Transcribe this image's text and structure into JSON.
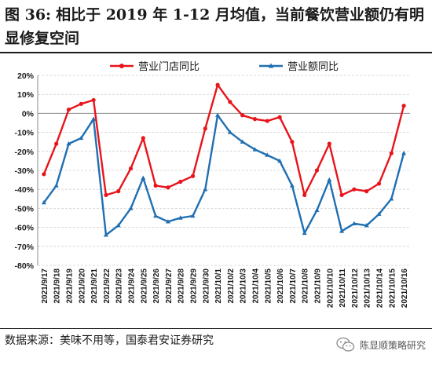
{
  "header": {
    "figure_label": "图 36:",
    "title": "相比于 2019 年 1-12 月均值，当前餐饮营业额仍有明显修复空间"
  },
  "footer": {
    "source": "数据来源：美味不用等，国泰君安证券研究",
    "watermark": "陈显顺策略研究"
  },
  "chart_data": {
    "type": "line",
    "categories": [
      "2021/9/17",
      "2021/9/18",
      "2021/9/19",
      "2021/9/20",
      "2021/9/21",
      "2021/9/22",
      "2021/9/23",
      "2021/9/24",
      "2021/9/25",
      "2021/9/26",
      "2021/9/27",
      "2021/9/28",
      "2021/9/29",
      "2021/9/30",
      "2021/10/1",
      "2021/10/2",
      "2021/10/3",
      "2021/10/4",
      "2021/10/5",
      "2021/10/6",
      "2021/10/7",
      "2021/10/8",
      "2021/10/9",
      "2021/10/10",
      "2021/10/11",
      "2021/10/12",
      "2021/10/13",
      "2021/10/14",
      "2021/10/15",
      "2021/10/16"
    ],
    "x_tick_labels": [
      "2021/9/17",
      "2021/9/18",
      "2021/9/19",
      "2021/9/20",
      "2021/9/21",
      "2021/9/22",
      "2021/9/23",
      "2021/9/24",
      "2021/9/25",
      "2021/9/26",
      "2021/9/27",
      "2021/9/28",
      "2021/9/29",
      "2021/9/30",
      "2021/10/1",
      "2021/10/2",
      "2021/10/3",
      "2021/10/4",
      "2021/10/5",
      "2021/10/6",
      "2021/10/7",
      "2021/10/8",
      "2021/10/9",
      "2021/10/10",
      "2021/10/11",
      "2021/10/12",
      "2021/10/13",
      "2021/10/14",
      "2021/10/15",
      "2021/10/16"
    ],
    "series": [
      {
        "name": "营业门店同比",
        "color": "#e8141b",
        "marker": "circle",
        "values": [
          -32,
          -16,
          2,
          5,
          7,
          -43,
          -41,
          -29,
          -13,
          -38,
          -39,
          -36,
          -33,
          -8,
          15,
          6,
          -1,
          -3,
          -4,
          -2,
          -15,
          -43,
          -30,
          -16,
          -43,
          -40,
          -41,
          -37,
          -21,
          4
        ]
      },
      {
        "name": "营业额同比",
        "color": "#1f6fb2",
        "marker": "triangle",
        "values": [
          -47,
          -38,
          -16,
          -13,
          -3,
          -64,
          -59,
          -50,
          -34,
          -54,
          -57,
          -55,
          -54,
          -40,
          -1,
          -10,
          -15,
          -19,
          -22,
          -25,
          -38,
          -63,
          -51,
          -35,
          -62,
          -58,
          -59,
          -53,
          -45,
          -21
        ]
      }
    ],
    "y_tick_labels": [
      "20%",
      "10%",
      "0%",
      "-10%",
      "-20%",
      "-30%",
      "-40%",
      "-50%",
      "-60%",
      "-70%",
      "-80%"
    ],
    "ylim": [
      -80,
      20
    ],
    "y_unit": "%",
    "grid": true,
    "legend_placement": "top"
  }
}
